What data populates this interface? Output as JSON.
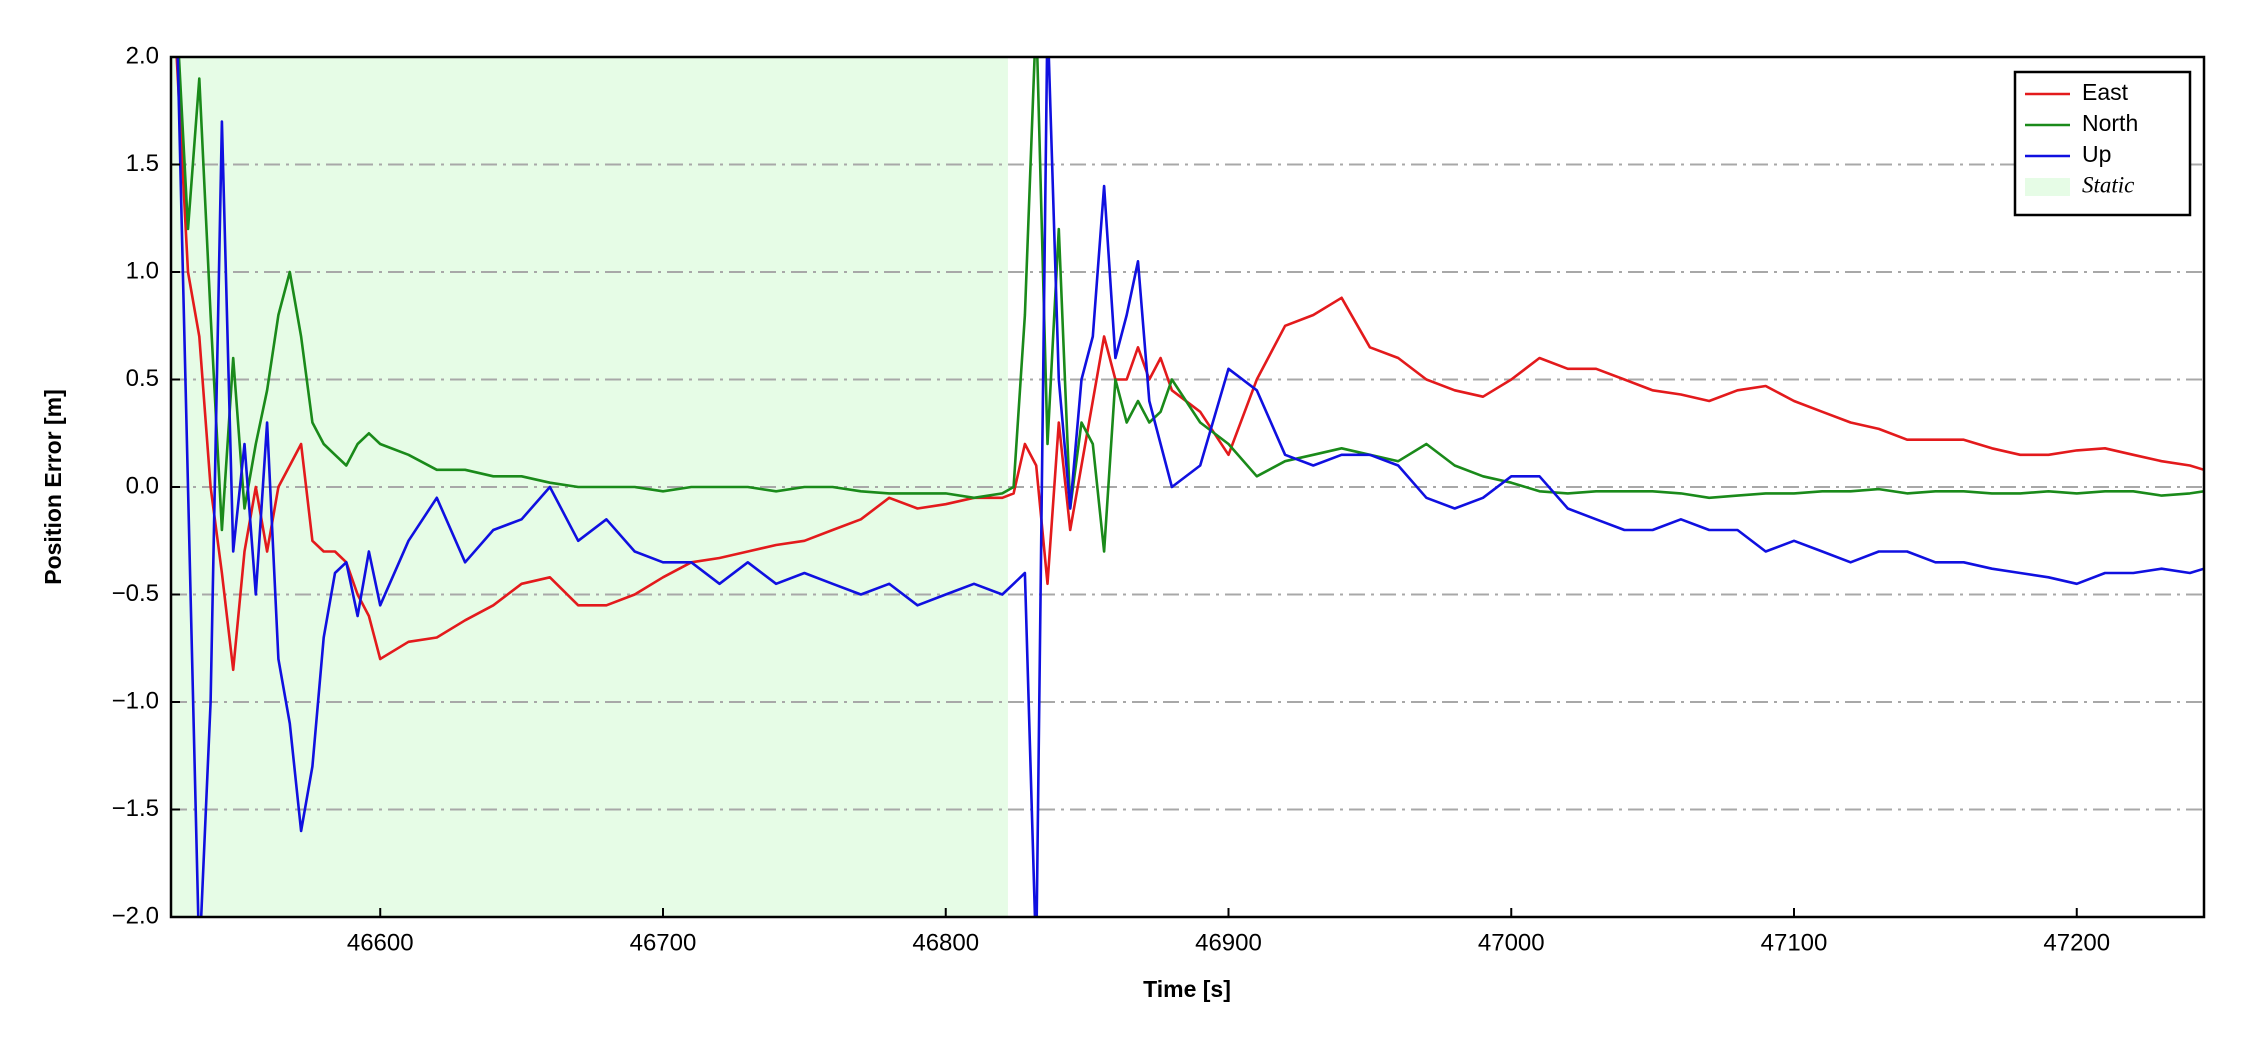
{
  "chart_data": {
    "type": "line",
    "x_label": "Time [s]",
    "y_label": "Position Error [m]",
    "x": [
      46528,
      46532,
      46536,
      46540,
      46544,
      46548,
      46552,
      46556,
      46560,
      46564,
      46568,
      46572,
      46576,
      46580,
      46584,
      46588,
      46592,
      46596,
      46600,
      46610,
      46620,
      46630,
      46640,
      46650,
      46660,
      46670,
      46680,
      46690,
      46700,
      46710,
      46720,
      46730,
      46740,
      46750,
      46760,
      46770,
      46780,
      46790,
      46800,
      46810,
      46820,
      46824,
      46828,
      46832,
      46836,
      46840,
      46844,
      46848,
      46852,
      46856,
      46860,
      46864,
      46868,
      46872,
      46876,
      46880,
      46890,
      46900,
      46910,
      46920,
      46930,
      46940,
      46950,
      46960,
      46970,
      46980,
      46990,
      47000,
      47010,
      47020,
      47030,
      47040,
      47050,
      47060,
      47070,
      47080,
      47090,
      47100,
      47110,
      47120,
      47130,
      47140,
      47150,
      47160,
      47170,
      47180,
      47190,
      47200,
      47210,
      47220,
      47230,
      47240,
      47245
    ],
    "series": [
      {
        "name": "East",
        "color": "#e31a1c",
        "values": [
          2.0,
          1.0,
          0.7,
          0.0,
          -0.4,
          -0.85,
          -0.3,
          0.0,
          -0.3,
          0.0,
          0.1,
          0.2,
          -0.25,
          -0.3,
          -0.3,
          -0.35,
          -0.5,
          -0.6,
          -0.8,
          -0.72,
          -0.7,
          -0.62,
          -0.55,
          -0.45,
          -0.42,
          -0.55,
          -0.55,
          -0.5,
          -0.42,
          -0.35,
          -0.33,
          -0.3,
          -0.27,
          -0.25,
          -0.2,
          -0.15,
          -0.05,
          -0.1,
          -0.08,
          -0.05,
          -0.05,
          -0.03,
          0.2,
          0.1,
          -0.45,
          0.3,
          -0.2,
          0.1,
          0.4,
          0.7,
          0.5,
          0.5,
          0.65,
          0.5,
          0.6,
          0.45,
          0.35,
          0.15,
          0.5,
          0.75,
          0.8,
          0.88,
          0.65,
          0.6,
          0.5,
          0.45,
          0.42,
          0.5,
          0.6,
          0.55,
          0.55,
          0.5,
          0.45,
          0.43,
          0.4,
          0.45,
          0.47,
          0.4,
          0.35,
          0.3,
          0.27,
          0.22,
          0.22,
          0.22,
          0.18,
          0.15,
          0.15,
          0.17,
          0.18,
          0.15,
          0.12,
          0.1,
          0.08
        ]
      },
      {
        "name": "North",
        "color": "#1a8a1a",
        "values": [
          2.2,
          1.2,
          1.9,
          0.8,
          -0.2,
          0.6,
          -0.1,
          0.2,
          0.45,
          0.8,
          1.0,
          0.7,
          0.3,
          0.2,
          0.15,
          0.1,
          0.2,
          0.25,
          0.2,
          0.15,
          0.08,
          0.08,
          0.05,
          0.05,
          0.02,
          0.0,
          0.0,
          0.0,
          -0.02,
          0.0,
          0.0,
          0.0,
          -0.02,
          0.0,
          0.0,
          -0.02,
          -0.03,
          -0.03,
          -0.03,
          -0.05,
          -0.03,
          0.0,
          0.8,
          2.2,
          0.2,
          1.2,
          -0.1,
          0.3,
          0.2,
          -0.3,
          0.5,
          0.3,
          0.4,
          0.3,
          0.35,
          0.5,
          0.3,
          0.2,
          0.05,
          0.12,
          0.15,
          0.18,
          0.15,
          0.12,
          0.2,
          0.1,
          0.05,
          0.02,
          -0.02,
          -0.03,
          -0.02,
          -0.02,
          -0.02,
          -0.03,
          -0.05,
          -0.04,
          -0.03,
          -0.03,
          -0.02,
          -0.02,
          -0.01,
          -0.03,
          -0.02,
          -0.02,
          -0.03,
          -0.03,
          -0.02,
          -0.03,
          -0.02,
          -0.02,
          -0.04,
          -0.03,
          -0.02
        ]
      },
      {
        "name": "Up",
        "color": "#1010e0",
        "values": [
          2.2,
          0.0,
          -2.2,
          -1.0,
          1.7,
          -0.3,
          0.2,
          -0.5,
          0.3,
          -0.8,
          -1.1,
          -1.6,
          -1.3,
          -0.7,
          -0.4,
          -0.35,
          -0.6,
          -0.3,
          -0.55,
          -0.25,
          -0.05,
          -0.35,
          -0.2,
          -0.15,
          0.0,
          -0.25,
          -0.15,
          -0.3,
          -0.35,
          -0.35,
          -0.45,
          -0.35,
          -0.45,
          -0.4,
          -0.45,
          -0.5,
          -0.45,
          -0.55,
          -0.5,
          -0.45,
          -0.5,
          -0.45,
          -0.4,
          -2.2,
          2.2,
          0.5,
          -0.1,
          0.5,
          0.7,
          1.4,
          0.6,
          0.8,
          1.05,
          0.4,
          0.2,
          0.0,
          0.1,
          0.55,
          0.45,
          0.15,
          0.1,
          0.15,
          0.15,
          0.1,
          -0.05,
          -0.1,
          -0.05,
          0.05,
          0.05,
          -0.1,
          -0.15,
          -0.2,
          -0.2,
          -0.15,
          -0.2,
          -0.2,
          -0.3,
          -0.25,
          -0.3,
          -0.35,
          -0.3,
          -0.3,
          -0.35,
          -0.35,
          -0.38,
          -0.4,
          -0.42,
          -0.45,
          -0.4,
          -0.4,
          -0.38,
          -0.4,
          -0.38
        ]
      }
    ],
    "static_region": {
      "name": "Static",
      "start": 46526,
      "end": 46822,
      "color": "#e6fce6"
    },
    "xlim": [
      46526,
      47245
    ],
    "ylim": [
      -2,
      2
    ],
    "xticks": [
      46600,
      46700,
      46800,
      46900,
      47000,
      47100,
      47200
    ],
    "yticks": [
      {
        "value": -2,
        "label": "−2.0"
      },
      {
        "value": -1.5,
        "label": "−1.5"
      },
      {
        "value": -1,
        "label": "−1.0"
      },
      {
        "value": -0.5,
        "label": "−0.5"
      },
      {
        "value": 0,
        "label": "0.0"
      },
      {
        "value": 0.5,
        "label": "0.5"
      },
      {
        "value": 1,
        "label": "1.0"
      },
      {
        "value": 1.5,
        "label": "1.5"
      },
      {
        "value": 2,
        "label": "2.0"
      }
    ],
    "grid": true,
    "legend": "upper right"
  }
}
